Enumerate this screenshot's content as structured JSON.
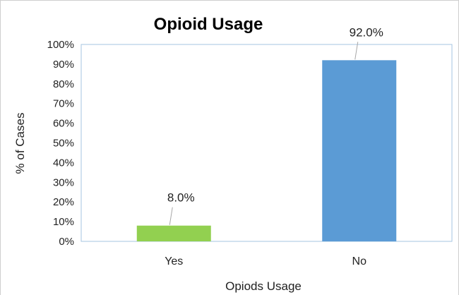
{
  "chart_data": {
    "type": "bar",
    "title": "Opioid Usage",
    "xlabel": "Opiods Usage",
    "ylabel": "% of Cases",
    "categories": [
      "Yes",
      "No"
    ],
    "values": [
      8.0,
      92.0
    ],
    "data_labels": [
      "8.0%",
      "92.0%"
    ],
    "ylim": [
      0,
      100
    ],
    "yticks": [
      0,
      10,
      20,
      30,
      40,
      50,
      60,
      70,
      80,
      90,
      100
    ],
    "ytick_labels": [
      "0%",
      "10%",
      "20%",
      "30%",
      "40%",
      "50%",
      "60%",
      "70%",
      "80%",
      "90%",
      "100%"
    ],
    "bar_colors": [
      "#92d050",
      "#5b9bd5"
    ],
    "grid": false,
    "legend": "none"
  }
}
